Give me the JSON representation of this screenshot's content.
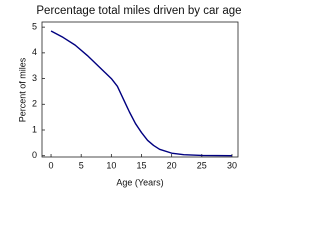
{
  "chart_data": {
    "type": "line",
    "title": "Percentage total miles driven by car age",
    "xlabel": "Age (Years)",
    "ylabel": "Percent of miles",
    "x": [
      0,
      2,
      4,
      6,
      8,
      10,
      11,
      12,
      13,
      14,
      15,
      16,
      17,
      18,
      20,
      22,
      25,
      30
    ],
    "series": [
      {
        "name": "Percent of miles",
        "color": "#000080",
        "values": [
          4.85,
          4.6,
          4.3,
          3.9,
          3.45,
          3.0,
          2.7,
          2.2,
          1.7,
          1.25,
          0.9,
          0.6,
          0.4,
          0.25,
          0.1,
          0.04,
          0.01,
          0
        ]
      }
    ],
    "xlim": [
      -1.5,
      31
    ],
    "ylim": [
      -0.05,
      5.2
    ],
    "xticks": [
      0,
      5,
      10,
      15,
      20,
      25,
      30
    ],
    "yticks": [
      0,
      1,
      2,
      3,
      4,
      5
    ]
  }
}
